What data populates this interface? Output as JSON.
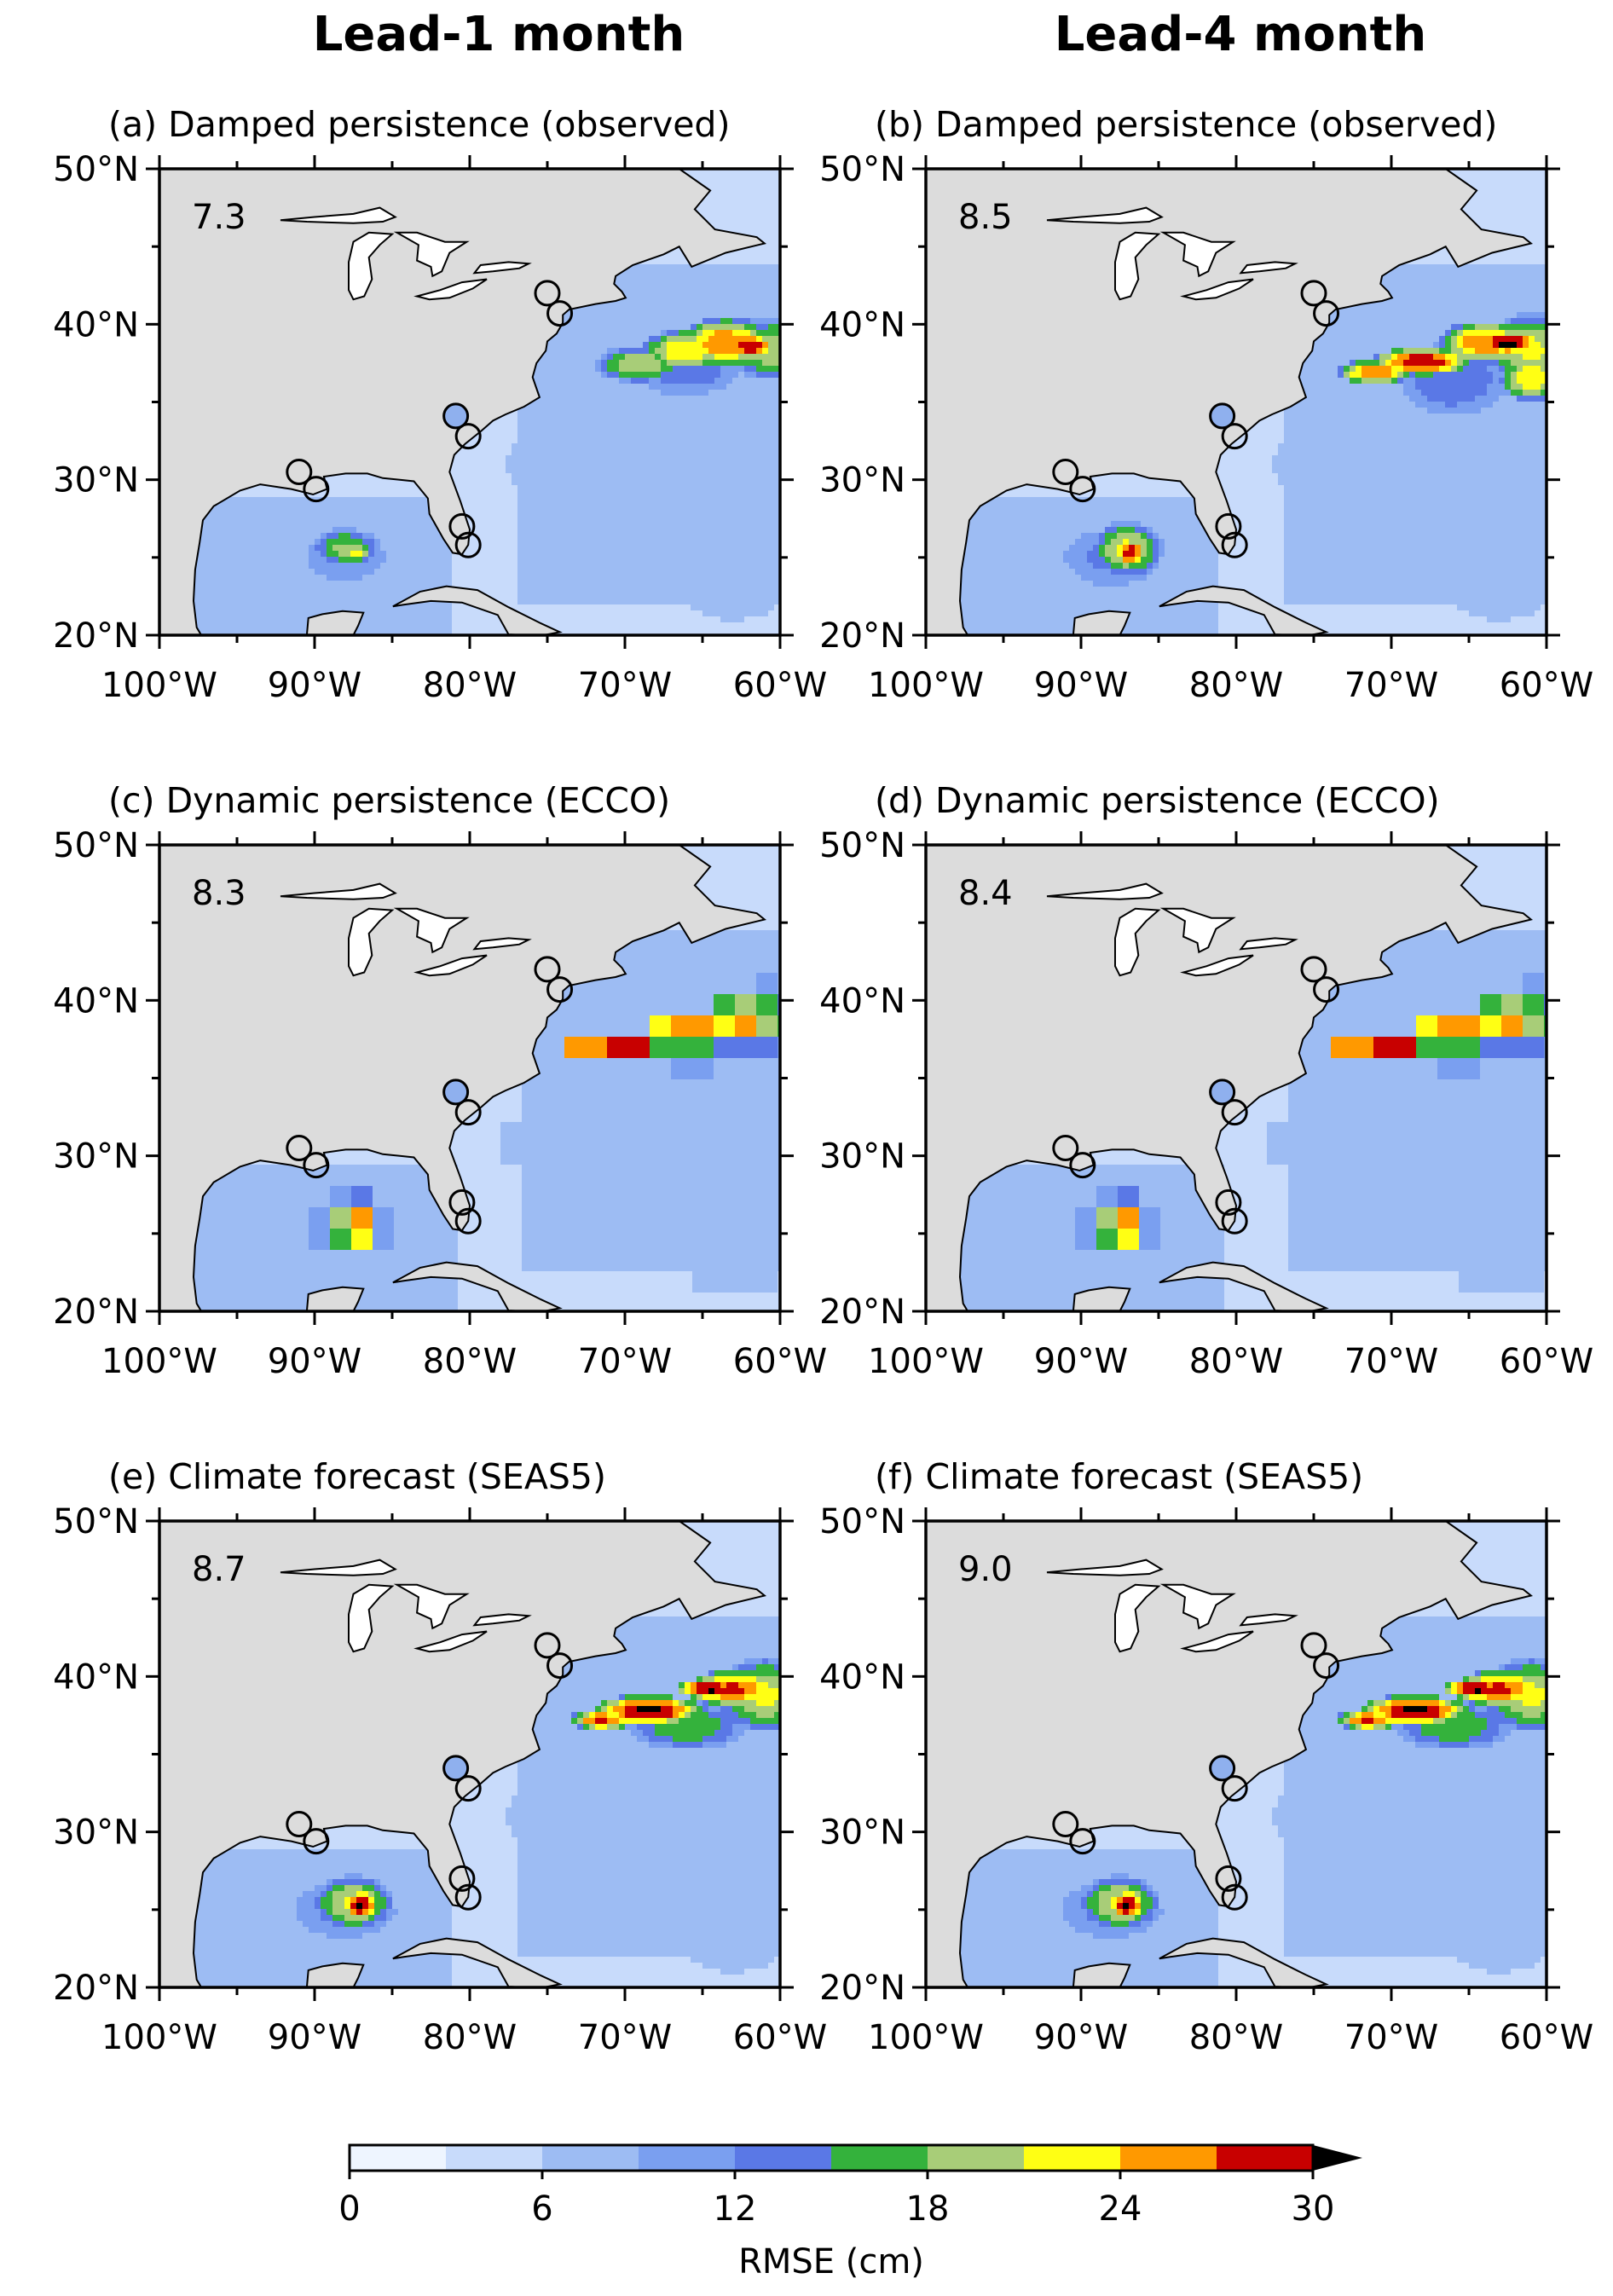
{
  "column_titles": [
    "Lead-1 month",
    "Lead-4 month"
  ],
  "colors": {
    "land": "#dcdcdc",
    "ocean_base": "#e4eefb",
    "frame": "#000000",
    "station_fill": "#8fb0ee"
  },
  "colorbar": {
    "label": "RMSE (cm)",
    "ticks": [
      "0",
      "6",
      "12",
      "18",
      "24",
      "30"
    ],
    "bins": [
      0,
      3,
      6,
      9,
      12,
      15,
      18,
      21,
      24,
      27,
      30
    ],
    "colors": [
      "#eef5ff",
      "#c8dbfb",
      "#9dbcf3",
      "#7a9ff0",
      "#5a78e6",
      "#34b23c",
      "#a8cd78",
      "#ffff14",
      "#ff9900",
      "#c80000"
    ],
    "extend_color": "#000000"
  },
  "chart_data": [
    {
      "type": "heatmap",
      "panel": "a",
      "title": "(a) Damped persistence (observed)",
      "rmse_value": "7.3",
      "variable": "RMSE (cm)",
      "region": {
        "lon": [
          -100,
          -60
        ],
        "lat": [
          20,
          50
        ]
      },
      "xlabel": "",
      "ylabel": "",
      "xticks": [
        "100°W",
        "90°W",
        "80°W",
        "70°W",
        "60°W"
      ],
      "yticks": [
        "20°N",
        "30°N",
        "40°N",
        "50°N"
      ],
      "gulf_stream_max_cm": 30,
      "gulf_of_mexico_max_cm": 22,
      "open_ocean_cm": 8
    },
    {
      "type": "heatmap",
      "panel": "b",
      "title": "(b) Damped persistence (observed)",
      "rmse_value": "8.5",
      "variable": "RMSE (cm)",
      "region": {
        "lon": [
          -100,
          -60
        ],
        "lat": [
          20,
          50
        ]
      },
      "xlabel": "",
      "ylabel": "",
      "xticks": [
        "100°W",
        "90°W",
        "80°W",
        "70°W",
        "60°W"
      ],
      "yticks": [
        "20°N",
        "30°N",
        "40°N",
        "50°N"
      ],
      "gulf_stream_max_cm": 32,
      "gulf_of_mexico_max_cm": 29,
      "open_ocean_cm": 9
    },
    {
      "type": "heatmap",
      "panel": "c",
      "title": "(c) Dynamic persistence (ECCO)",
      "rmse_value": "8.3",
      "variable": "RMSE (cm)",
      "region": {
        "lon": [
          -100,
          -60
        ],
        "lat": [
          20,
          50
        ]
      },
      "xlabel": "",
      "ylabel": "",
      "xticks": [
        "100°W",
        "90°W",
        "80°W",
        "70°W",
        "60°W"
      ],
      "yticks": [
        "20°N",
        "30°N",
        "40°N",
        "50°N"
      ],
      "gulf_stream_max_cm": 32,
      "gulf_of_mexico_max_cm": 29,
      "open_ocean_cm": 9
    },
    {
      "type": "heatmap",
      "panel": "d",
      "title": "(d) Dynamic persistence (ECCO)",
      "rmse_value": "8.4",
      "variable": "RMSE (cm)",
      "region": {
        "lon": [
          -100,
          -60
        ],
        "lat": [
          20,
          50
        ]
      },
      "xlabel": "",
      "ylabel": "",
      "xticks": [
        "100°W",
        "90°W",
        "80°W",
        "70°W",
        "60°W"
      ],
      "yticks": [
        "20°N",
        "30°N",
        "40°N",
        "50°N"
      ],
      "gulf_stream_max_cm": 32,
      "gulf_of_mexico_max_cm": 29,
      "open_ocean_cm": 9
    },
    {
      "type": "heatmap",
      "panel": "e",
      "title": "(e) Climate forecast (SEAS5)",
      "rmse_value": "8.7",
      "variable": "RMSE (cm)",
      "region": {
        "lon": [
          -100,
          -60
        ],
        "lat": [
          20,
          50
        ]
      },
      "xlabel": "",
      "ylabel": "",
      "xticks": [
        "100°W",
        "90°W",
        "80°W",
        "70°W",
        "60°W"
      ],
      "yticks": [
        "20°N",
        "30°N",
        "40°N",
        "50°N"
      ],
      "gulf_stream_max_cm": 32,
      "gulf_of_mexico_max_cm": 32,
      "open_ocean_cm": 9
    },
    {
      "type": "heatmap",
      "panel": "f",
      "title": "(f) Climate forecast (SEAS5)",
      "rmse_value": "9.0",
      "variable": "RMSE (cm)",
      "region": {
        "lon": [
          -100,
          -60
        ],
        "lat": [
          20,
          50
        ]
      },
      "xlabel": "",
      "ylabel": "",
      "xticks": [
        "100°W",
        "90°W",
        "80°W",
        "70°W",
        "60°W"
      ],
      "yticks": [
        "20°N",
        "30°N",
        "40°N",
        "50°N"
      ],
      "gulf_stream_max_cm": 32,
      "gulf_of_mexico_max_cm": 31,
      "open_ocean_cm": 9
    }
  ],
  "stations": [
    {
      "lon": -75,
      "lat": 42,
      "filled": false
    },
    {
      "lon": -74.2,
      "lat": 40.7,
      "filled": false
    },
    {
      "lon": -80.9,
      "lat": 34.1,
      "filled": true
    },
    {
      "lon": -80.1,
      "lat": 32.8,
      "filled": false
    },
    {
      "lon": -91,
      "lat": 30.5,
      "filled": false
    },
    {
      "lon": -89.9,
      "lat": 29.4,
      "filled": false
    },
    {
      "lon": -80.5,
      "lat": 27,
      "filled": false
    },
    {
      "lon": -80.1,
      "lat": 25.8,
      "filled": false
    }
  ]
}
